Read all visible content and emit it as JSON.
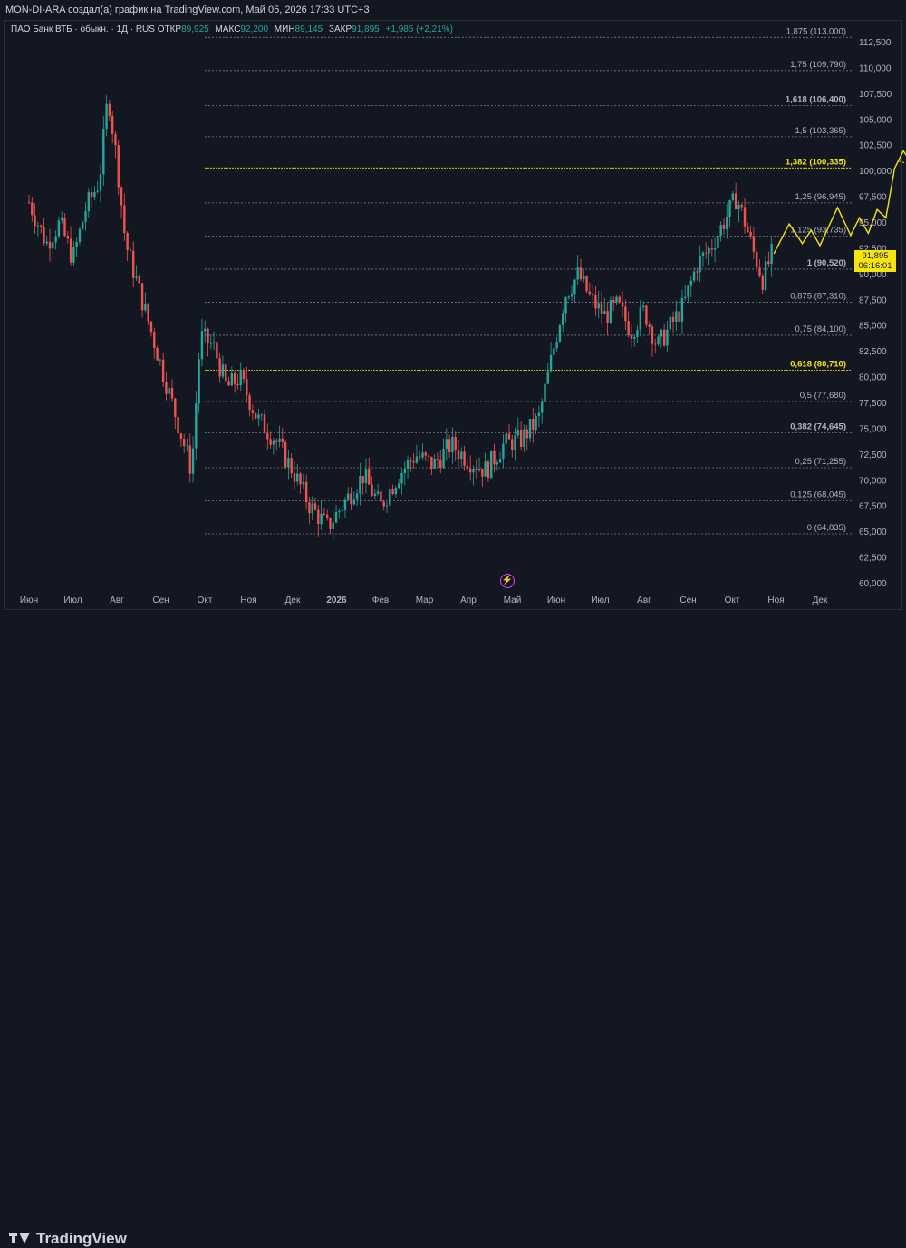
{
  "header": {
    "attribution": "MON-DI-ARA создал(а) график на TradingView.com, Май 05, 2026 17:33 UTC+3"
  },
  "legend": {
    "symbol": "ПАО Банк ВТБ · обыкн. · 1Д · RUS",
    "open_label": "ОТКР",
    "open": "89,925",
    "high_label": "МАКС",
    "high": "92,200",
    "low_label": "МИН",
    "low": "89,145",
    "close_label": "ЗАКР",
    "close": "91,895",
    "change": "+1,985 (+2,21%)"
  },
  "price_badge": {
    "price": "91,895",
    "countdown": "06:16:01"
  },
  "footer": {
    "brand": "TradingView"
  },
  "icons": {
    "flash": "flash-icon",
    "logo": "tradingview-logo-icon"
  },
  "colors": {
    "background": "#131722",
    "up": "#26a69a",
    "down": "#ef5350",
    "projection": "#f5e50f",
    "fib_highlight": "#f5e50f"
  },
  "chart_data": {
    "type": "candlestick",
    "y_axis": {
      "ticks": [
        "112,500",
        "110,000",
        "107,500",
        "105,000",
        "102,500",
        "100,000",
        "97,500",
        "95,000",
        "92,500",
        "90,000",
        "87,500",
        "85,000",
        "82,500",
        "80,000",
        "77,500",
        "75,000",
        "72,500",
        "70,000",
        "67,500",
        "65,000",
        "62,500",
        "60,000"
      ],
      "ylim": [
        60,
        113
      ]
    },
    "x_axis": {
      "ticks": [
        "Июн",
        "Июл",
        "Авг",
        "Сен",
        "Окт",
        "Ноя",
        "Дек",
        "2026",
        "Фев",
        "Мар",
        "Апр",
        "Май",
        "Июн",
        "Июл",
        "Авг",
        "Сен",
        "Окт",
        "Ноя",
        "Дек"
      ]
    },
    "fibonacci": [
      {
        "label": "1,875 (113,000)",
        "value": 113.0
      },
      {
        "label": "1,75 (109,790)",
        "value": 109.79
      },
      {
        "label": "1,618 (106,400)",
        "value": 106.4
      },
      {
        "label": "1,5 (103,365)",
        "value": 103.365
      },
      {
        "label": "1,382 (100,335)",
        "value": 100.335,
        "highlight": true
      },
      {
        "label": "1,25 (96,945)",
        "value": 96.945
      },
      {
        "label": "1,125 (93,735)",
        "value": 93.735
      },
      {
        "label": "1 (90,520)",
        "value": 90.52
      },
      {
        "label": "0,875 (87,310)",
        "value": 87.31
      },
      {
        "label": "0,75 (84,100)",
        "value": 84.1
      },
      {
        "label": "0,618 (80,710)",
        "value": 80.71,
        "highlight": true
      },
      {
        "label": "0,5 (77,680)",
        "value": 77.68
      },
      {
        "label": "0,382 (74,645)",
        "value": 74.645
      },
      {
        "label": "0,25 (71,255)",
        "value": 71.255
      },
      {
        "label": "0,125 (68,045)",
        "value": 68.045
      },
      {
        "label": "0 (64,835)",
        "value": 64.835
      }
    ],
    "price_path": [
      [
        0,
        97
      ],
      [
        0.4,
        93
      ],
      [
        0.7,
        95
      ],
      [
        1,
        91.5
      ],
      [
        1.3,
        96.5
      ],
      [
        1.6,
        99
      ],
      [
        1.8,
        107.5
      ],
      [
        2,
        101
      ],
      [
        2.2,
        93
      ],
      [
        3.7,
        71
      ],
      [
        3.9,
        84
      ],
      [
        4.2,
        83
      ],
      [
        4.5,
        79
      ],
      [
        4.8,
        80
      ],
      [
        5.2,
        76
      ],
      [
        5.6,
        74
      ],
      [
        6,
        71
      ],
      [
        6.4,
        67.5
      ],
      [
        6.8,
        65.5
      ],
      [
        7.2,
        68
      ],
      [
        7.6,
        70.5
      ],
      [
        8,
        67.5
      ],
      [
        8.4,
        70.5
      ],
      [
        8.8,
        72.5
      ],
      [
        9.2,
        71.5
      ],
      [
        9.6,
        73.5
      ],
      [
        10,
        72
      ],
      [
        10.4,
        71
      ],
      [
        10.8,
        73.5
      ],
      [
        11.2,
        74
      ],
      [
        11.6,
        76
      ],
      [
        11.9,
        82
      ],
      [
        12.2,
        88
      ],
      [
        12.5,
        90
      ],
      [
        12.8,
        87.5
      ],
      [
        13.1,
        86
      ],
      [
        13.4,
        87
      ],
      [
        13.7,
        84.5
      ],
      [
        14,
        86.5
      ],
      [
        14.3,
        83
      ],
      [
        14.6,
        85
      ],
      [
        14.9,
        87
      ],
      [
        15.2,
        91
      ],
      [
        15.5,
        92.5
      ],
      [
        15.8,
        95
      ],
      [
        16.1,
        97.5
      ],
      [
        16.3,
        95
      ],
      [
        16.5,
        92
      ],
      [
        16.7,
        89.5
      ],
      [
        16.9,
        91.9
      ]
    ],
    "projection_main": [
      [
        16.95,
        92
      ],
      [
        17.3,
        94.9
      ],
      [
        17.6,
        93
      ],
      [
        17.8,
        94.3
      ],
      [
        18,
        92.8
      ],
      [
        18.4,
        96.5
      ],
      [
        18.7,
        93.8
      ],
      [
        18.9,
        95.5
      ],
      [
        19.1,
        94
      ],
      [
        19.3,
        96.3
      ],
      [
        19.5,
        95.5
      ],
      [
        19.7,
        100.3
      ],
      [
        19.9,
        102
      ],
      [
        20.2,
        100
      ],
      [
        20.4,
        101
      ],
      [
        20.6,
        100.2
      ],
      [
        20.9,
        103
      ],
      [
        21.2,
        106.4
      ]
    ],
    "projection_branch_low": [
      [
        19.8,
        101
      ],
      [
        20.2,
        100.5
      ],
      [
        20.5,
        99
      ],
      [
        20.8,
        100
      ],
      [
        21,
        100.3
      ],
      [
        21.4,
        96.5
      ],
      [
        21.7,
        94
      ]
    ],
    "projection_branch_high": [
      [
        21.2,
        106
      ],
      [
        21.6,
        107.8
      ],
      [
        21.9,
        106.5
      ],
      [
        22.2,
        106.1
      ],
      [
        22.5,
        107.2
      ],
      [
        22.8,
        104
      ],
      [
        23.1,
        100.5
      ]
    ]
  }
}
